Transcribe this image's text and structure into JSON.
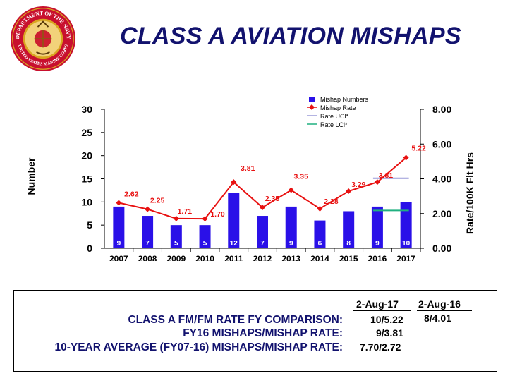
{
  "title": "CLASS A AVIATION MISHAPS",
  "seal": {
    "top_text": "DEPARTMENT OF THE NAVY",
    "bottom_text": "UNITED STATES MARINE CORPS",
    "colors": {
      "ring": "#c8102e",
      "gold": "#d9a520",
      "center": "#cc2030"
    }
  },
  "colors": {
    "title": "#12126e",
    "bars": "#2a10e8",
    "rate_line": "#e81010",
    "ucl": "#9a9ad8",
    "lcl": "#20b080"
  },
  "chart_data": {
    "type": "bar",
    "categories": [
      "2007",
      "2008",
      "2009",
      "2010",
      "2011",
      "2012",
      "2013",
      "2014",
      "2015",
      "2016",
      "2017"
    ],
    "series": [
      {
        "name": "Mishap Numbers",
        "type": "bar",
        "axis": "left",
        "values": [
          9,
          7,
          5,
          5,
          12,
          7,
          9,
          6,
          8,
          9,
          10
        ],
        "labels": [
          "9",
          "7",
          "5",
          "5",
          "12",
          "7",
          "9",
          "6",
          "8",
          "9",
          "10"
        ]
      },
      {
        "name": "Mishap Rate",
        "type": "line",
        "axis": "right",
        "values": [
          2.62,
          2.25,
          1.71,
          1.7,
          3.81,
          2.35,
          3.35,
          2.28,
          3.29,
          3.81,
          5.22
        ],
        "labels": [
          "2.62",
          "2.25",
          "1.71",
          "1.70",
          "3.81",
          "2.35",
          "3.35",
          "2.28",
          "3.29",
          "3.81",
          "5.22"
        ]
      },
      {
        "name": "Rate UCl*",
        "type": "line",
        "axis": "right",
        "x": [
          "2016",
          "2017"
        ],
        "values": [
          4.03,
          4.03
        ]
      },
      {
        "name": "Rate LCl*",
        "type": "line",
        "axis": "right",
        "x": [
          "2016",
          "2017"
        ],
        "values": [
          2.18,
          2.18
        ]
      }
    ],
    "ylabel": "Number",
    "y2label": "Rate/100K Flt Hrs",
    "ylim": [
      0,
      30
    ],
    "y2lim": [
      0,
      8
    ],
    "yticks": [
      "0",
      "5",
      "10",
      "15",
      "20",
      "25",
      "30"
    ],
    "y2ticks": [
      "0.00",
      "2.00",
      "4.00",
      "6.00",
      "8.00"
    ],
    "grid": false,
    "legend_position": "top-right"
  },
  "summary": {
    "col1_header": "2-Aug-17",
    "col2_header": "2-Aug-16",
    "rows": [
      {
        "label": "CLASS A FM/FM RATE FY COMPARISON:",
        "col1": "10/5.22",
        "col2": "8/4.01"
      },
      {
        "label": "FY16 MISHAPS/MISHAP RATE:",
        "col1": "9/3.81",
        "col2": ""
      },
      {
        "label": "10-YEAR AVERAGE (FY07-16) MISHAPS/MISHAP RATE:",
        "col1": "7.70/2.72",
        "col2": ""
      }
    ]
  }
}
